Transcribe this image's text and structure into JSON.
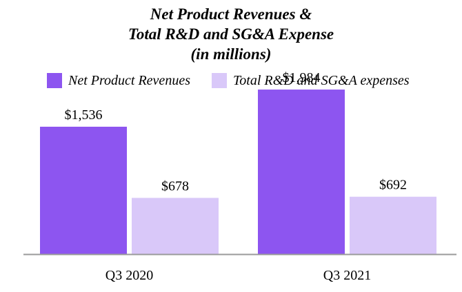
{
  "chart_data": {
    "type": "bar",
    "title_lines": [
      "Net Product Revenues &",
      "Total R&D and SG&A Expense",
      "(in millions)"
    ],
    "categories": [
      "Q3 2020",
      "Q3 2021"
    ],
    "series": [
      {
        "name": "Net Product Revenues",
        "values": [
          1536,
          1984
        ],
        "labels": [
          "$1,536",
          "$1,984"
        ],
        "color": "#8d55f0"
      },
      {
        "name": "Total R&D and SG&A expenses",
        "values": [
          678,
          692
        ],
        "labels": [
          "$678",
          "$692"
        ],
        "color": "#d9c8f9"
      }
    ],
    "xlabel": "",
    "ylabel": "",
    "ylim": [
      0,
      2300
    ],
    "grid": false,
    "legend_position": "top"
  }
}
